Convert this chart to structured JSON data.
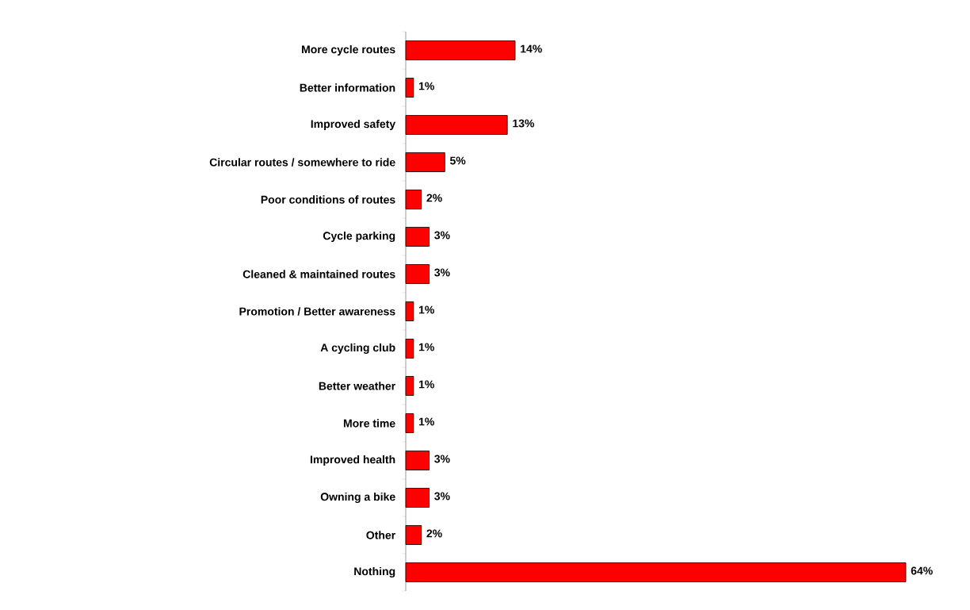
{
  "chart_data": {
    "type": "bar",
    "orientation": "horizontal",
    "color": "#ff0000",
    "categories": [
      "More cycle routes",
      "Better information",
      "Improved safety",
      "Circular routes / somewhere to ride",
      "Poor conditions of routes",
      "Cycle parking",
      "Cleaned & maintained routes",
      "Promotion / Better awareness",
      "A cycling club",
      "Better weather",
      "More time",
      "Improved health",
      "Owning a bike",
      "Other",
      "Nothing"
    ],
    "values": [
      14,
      1,
      13,
      5,
      2,
      3,
      3,
      1,
      1,
      1,
      1,
      3,
      3,
      2,
      64
    ],
    "value_labels": [
      "14%",
      "1%",
      "13%",
      "5%",
      "2%",
      "3%",
      "3%",
      "1%",
      "1%",
      "1%",
      "1%",
      "3%",
      "3%",
      "2%",
      "64%"
    ]
  }
}
